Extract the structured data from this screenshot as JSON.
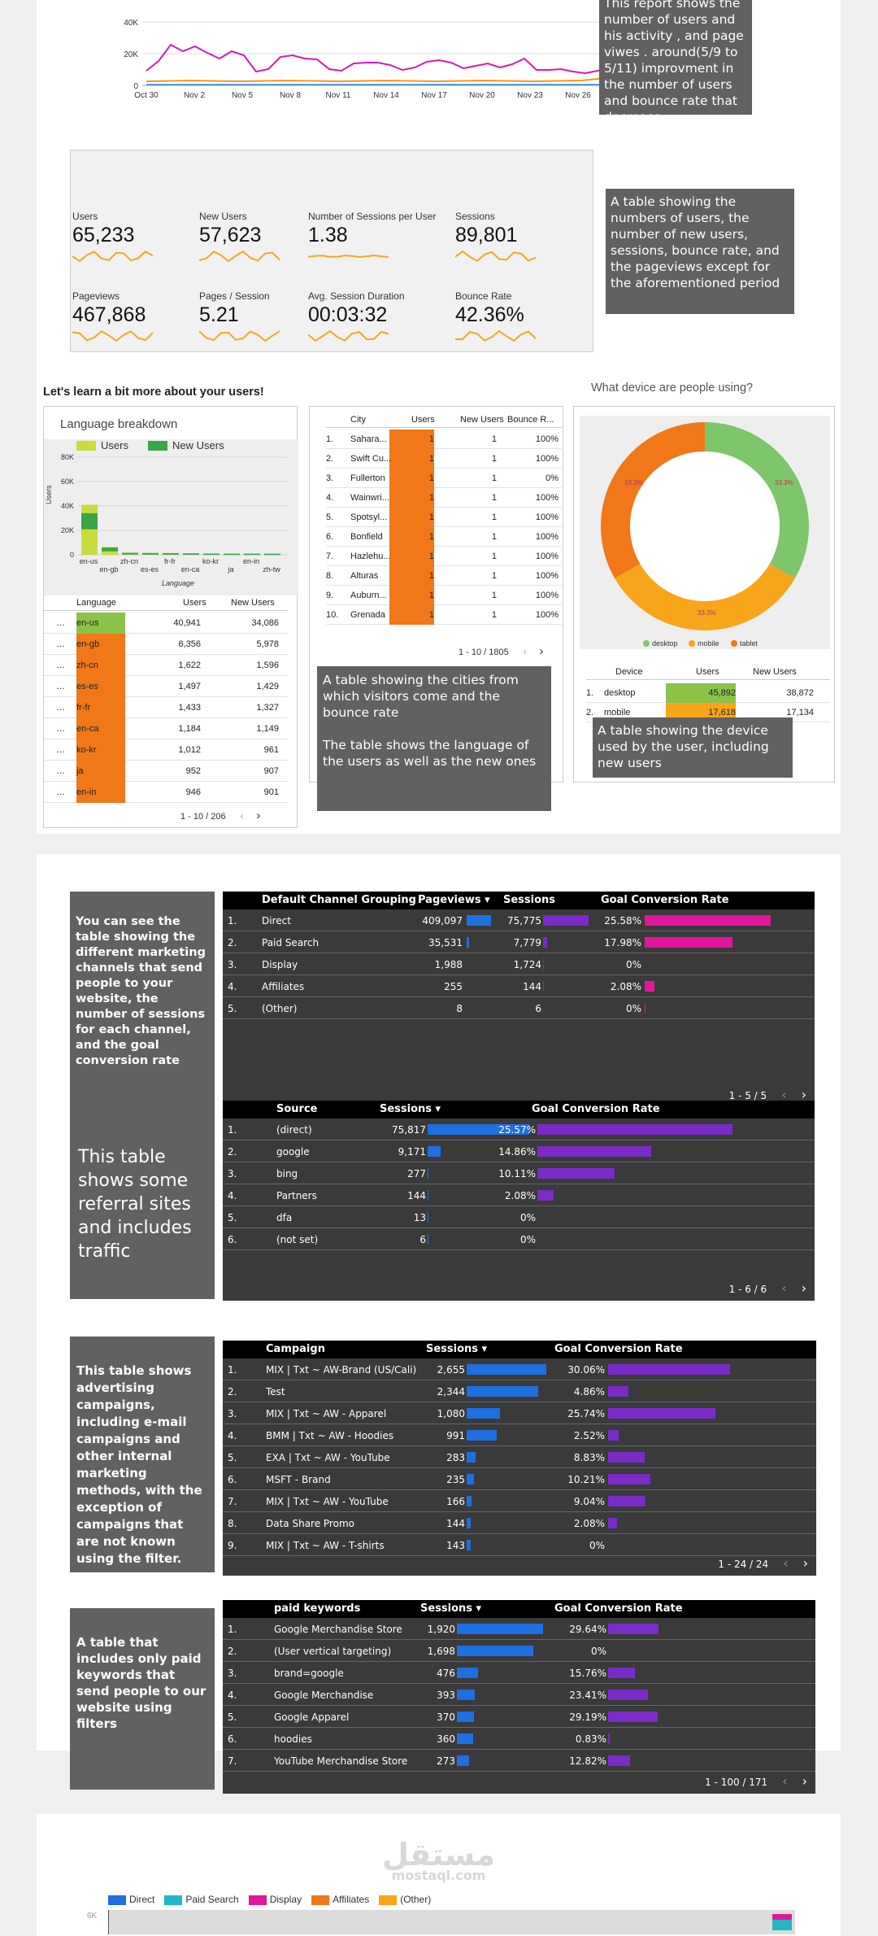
{
  "top_chart": {
    "yticks": [
      "40K",
      "20K",
      "0"
    ],
    "xticks": [
      "Oct 30",
      "Nov 2",
      "Nov 5",
      "Nov 8",
      "Nov 11",
      "Nov 14",
      "Nov 17",
      "Nov 20",
      "Nov 23",
      "Nov 26"
    ]
  },
  "notes": {
    "report": "This report shows the number of users and his activity ,   and page viwes . around(5/9 to 5/11) improvment in the number of users and bounce rate that decrease",
    "kpi": "A table showing the numbers of users, the number of new users, sessions, bounce rate, and the pageviews except for the aforementioned period",
    "cities": "A table showing the cities from which visitors come and the bounce rate\n\nThe table shows the language of the users as well as the new ones",
    "device": "A table showing the device used by the user, including new users",
    "channels": "You can see the table showing the different marketing channels that send people to your website, the number of sessions for each channel, and the goal conversion rate",
    "source": "This table shows some referral sites and includes traffic",
    "campaign": " This table shows advertising campaigns, including e-mail campaigns and other internal marketing methods, with the exception of campaigns that are not known using the filter.",
    "keywords": " A table that includes only paid keywords that send people to our website using filters"
  },
  "kpis": [
    {
      "label": "Users",
      "value": "65,233"
    },
    {
      "label": "New Users",
      "value": "57,623"
    },
    {
      "label": "Number of Sessions per User",
      "value": "1.38"
    },
    {
      "label": "Sessions",
      "value": "89,801"
    },
    {
      "label": "Pageviews",
      "value": "467,868"
    },
    {
      "label": "Pages / Session",
      "value": "5.21"
    },
    {
      "label": "Avg. Session Duration",
      "value": "00:03:32"
    },
    {
      "label": "Bounce Rate",
      "value": "42.36%"
    }
  ],
  "section2_title": "Let's learn a bit more about your users!",
  "language": {
    "title": "Language breakdown",
    "legend": [
      "Users",
      "New Users"
    ],
    "yticks": [
      "80K",
      "60K",
      "40K",
      "20K",
      "0"
    ],
    "ylabel": "Users",
    "xlabel": "Language",
    "xticks_top": [
      "en-us",
      "zh-cn",
      "fr-fr",
      "ko-kr",
      "en-in"
    ],
    "xticks_bottom": [
      "en-gb",
      "es-es",
      "en-ca",
      "ja",
      "zh-tw"
    ],
    "headers": [
      "Language",
      "Users",
      "New Users"
    ],
    "rows": [
      [
        "en-us",
        "40,941",
        "34,086"
      ],
      [
        "en-gb",
        "6,356",
        "5,978"
      ],
      [
        "zh-cn",
        "1,622",
        "1,596"
      ],
      [
        "es-es",
        "1,497",
        "1,429"
      ],
      [
        "fr-fr",
        "1,433",
        "1,327"
      ],
      [
        "en-ca",
        "1,184",
        "1,149"
      ],
      [
        "ko-kr",
        "1,012",
        "961"
      ],
      [
        "ja",
        "952",
        "907"
      ],
      [
        "en-in",
        "946",
        "901"
      ]
    ],
    "pager": "1 - 10 / 206"
  },
  "cities": {
    "headers": [
      "City",
      "Users",
      "New Users",
      "Bounce R..."
    ],
    "rows": [
      [
        "1.",
        "Sahara...",
        "1",
        "1",
        "100%"
      ],
      [
        "2.",
        "Swift Cu...",
        "1",
        "1",
        "100%"
      ],
      [
        "3.",
        "Fullerton",
        "1",
        "1",
        "0%"
      ],
      [
        "4.",
        "Wainwri...",
        "1",
        "1",
        "100%"
      ],
      [
        "5.",
        "Spotsyl...",
        "1",
        "1",
        "100%"
      ],
      [
        "6.",
        "Bonfield",
        "1",
        "1",
        "100%"
      ],
      [
        "7.",
        "Hazlehu...",
        "1",
        "1",
        "100%"
      ],
      [
        "8.",
        "Alturas",
        "1",
        "1",
        "100%"
      ],
      [
        "9.",
        "Auburn...",
        "1",
        "1",
        "100%"
      ],
      [
        "10.",
        "Grenada",
        "1",
        "1",
        "100%"
      ]
    ],
    "pager": "1 - 10 / 1805"
  },
  "device": {
    "title": "What device are people using?",
    "legend": [
      "desktop",
      "mobile",
      "tablet"
    ],
    "slice_labels": [
      "33.3%",
      "33.3%",
      "33.3%"
    ],
    "headers": [
      "Device",
      "Users",
      "New Users"
    ],
    "rows": [
      [
        "1.",
        "desktop",
        "45,892",
        "38,872"
      ],
      [
        "2.",
        "mobile",
        "17,618",
        "17,134"
      ]
    ]
  },
  "channels": {
    "headers": [
      "Default Channel Grouping",
      "Pageviews ▾",
      "Sessions",
      "Goal Conversion Rate"
    ],
    "rows": [
      [
        "1.",
        "Direct",
        "409,097",
        "75,775",
        "25.58%"
      ],
      [
        "2.",
        "Paid Search",
        "35,531",
        "7,779",
        "17.98%"
      ],
      [
        "3.",
        "Display",
        "1,988",
        "1,724",
        "0%"
      ],
      [
        "4.",
        "Affiliates",
        "255",
        "144",
        "2.08%"
      ],
      [
        "5.",
        "(Other)",
        "8",
        "6",
        "0%"
      ]
    ],
    "pager": "1 - 5 / 5"
  },
  "source": {
    "headers": [
      "Source",
      "Sessions ▾",
      "Goal Conversion Rate"
    ],
    "rows": [
      [
        "1.",
        "(direct)",
        "75,817",
        "25.57%"
      ],
      [
        "2.",
        "google",
        "9,171",
        "14.86%"
      ],
      [
        "3.",
        "bing",
        "277",
        "10.11%"
      ],
      [
        "4.",
        "Partners",
        "144",
        "2.08%"
      ],
      [
        "5.",
        "dfa",
        "13",
        "0%"
      ],
      [
        "6.",
        "(not set)",
        "6",
        "0%"
      ]
    ],
    "pager": "1 - 6 / 6"
  },
  "campaign": {
    "headers": [
      "Campaign",
      "Sessions ▾",
      "Goal Conversion Rate"
    ],
    "rows": [
      [
        "1.",
        "MIX | Txt ~ AW-Brand (US/Cali)",
        "2,655",
        "30.06%"
      ],
      [
        "2.",
        "Test",
        "2,344",
        "4.86%"
      ],
      [
        "3.",
        "MIX | Txt ~ AW - Apparel",
        "1,080",
        "25.74%"
      ],
      [
        "4.",
        "BMM | Txt ~ AW - Hoodies",
        "991",
        "2.52%"
      ],
      [
        "5.",
        "EXA | Txt ~ AW - YouTube",
        "283",
        "8.83%"
      ],
      [
        "6.",
        "MSFT - Brand",
        "235",
        "10.21%"
      ],
      [
        "7.",
        "MIX | Txt ~ AW - YouTube",
        "166",
        "9.04%"
      ],
      [
        "8.",
        "Data Share Promo",
        "144",
        "2.08%"
      ],
      [
        "9.",
        "MIX | Txt ~ AW - T-shirts",
        "143",
        "0%"
      ]
    ],
    "pager": "1 - 24 / 24"
  },
  "keywords": {
    "headers": [
      "paid keywords",
      "Sessions ▾",
      "Goal Conversion Rate"
    ],
    "rows": [
      [
        "1.",
        "Google Merchandise Store",
        "1,920",
        "29.64%"
      ],
      [
        "2.",
        "(User vertical targeting)",
        "1,698",
        "0%"
      ],
      [
        "3.",
        "brand=google",
        "476",
        "15.76%"
      ],
      [
        "4.",
        "Google Merchandise",
        "393",
        "23.41%"
      ],
      [
        "5.",
        "Google Apparel",
        "370",
        "29.19%"
      ],
      [
        "6.",
        "hoodies",
        "360",
        "0.83%"
      ],
      [
        "7.",
        "YouTube Merchandise Store",
        "273",
        "12.82%"
      ]
    ],
    "pager": "1 - 100 / 171"
  },
  "bottom": {
    "legend": [
      "Direct",
      "Paid Search",
      "Display",
      "Affiliates",
      "(Other)"
    ],
    "ytick": "6K",
    "watermark": "مستقل",
    "watermark_sub": "mostaql.com"
  },
  "colors": {
    "users": "#c9dc3f",
    "new_users": "#3aa64a",
    "orange": "#f07818",
    "green": "#8bc34a",
    "blue": "#1e6fe0",
    "purple": "#7b2bc8",
    "pink": "#e0179c",
    "yellow": "#f9a51a",
    "desktop": "#7dc66a",
    "mobile": "#f9a51a",
    "tablet": "#f07818"
  }
}
